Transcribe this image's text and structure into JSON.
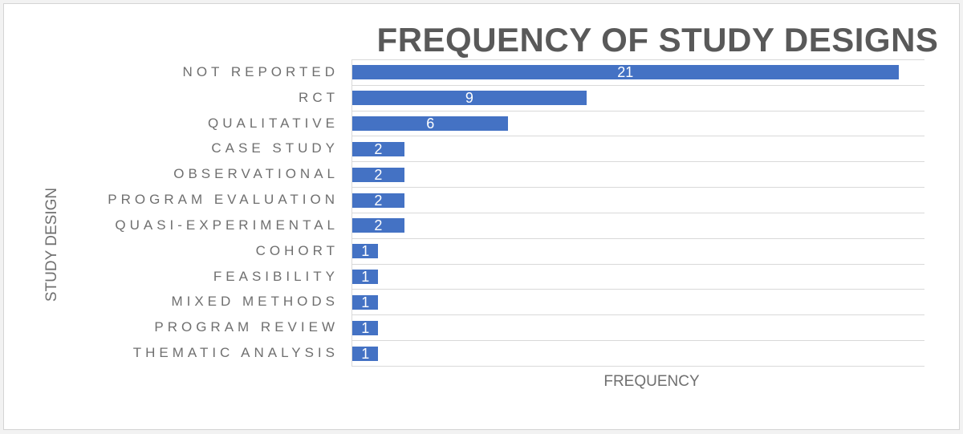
{
  "window": {
    "background": "#f2f2f2",
    "frame_background": "#ffffff",
    "frame_border_color": "#d4d4d4"
  },
  "chart_data": {
    "type": "bar",
    "orientation": "horizontal",
    "title": "FREQUENCY OF STUDY DESIGNS",
    "xlabel": "FREQUENCY",
    "ylabel": "STUDY DESIGN",
    "xlim": [
      0,
      22
    ],
    "grid": "horizontal category separator lines only",
    "legend_position": "none",
    "bar_color": "#4472C4",
    "data_label_color": "#ffffff",
    "data_label_position": "inside-center",
    "categories": [
      "NOT REPORTED",
      "RCT",
      "QUALITATIVE",
      "CASE STUDY",
      "OBSERVATIONAL",
      "PROGRAM EVALUATION",
      "QUASI-EXPERIMENTAL",
      "COHORT",
      "FEASIBILITY",
      "MIXED METHODS",
      "PROGRAM REVIEW",
      "THEMATIC ANALYSIS"
    ],
    "values": [
      21,
      9,
      6,
      2,
      2,
      2,
      2,
      1,
      1,
      1,
      1,
      1
    ]
  },
  "colors": {
    "title_text": "#595959",
    "axis_text": "#6f6f6f",
    "gridline": "#d9d9d9"
  }
}
